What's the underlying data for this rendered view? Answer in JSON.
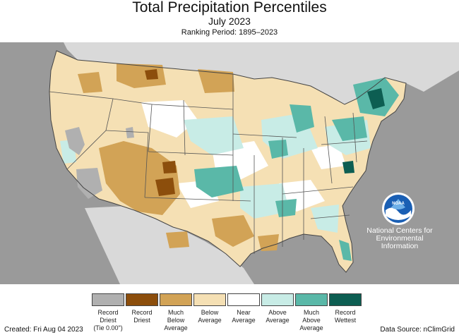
{
  "header": {
    "title": "Total Precipitation Percentiles",
    "subtitle": "July 2023",
    "ranking": "Ranking Period: 1895–2023"
  },
  "colors": {
    "ocean": "#9a9a9a",
    "other_land": "#d9d9d9",
    "record_driest_tie": "#b0b0b0",
    "record_driest": "#8c4e0c",
    "much_below": "#d2a356",
    "below": "#f5e0b4",
    "near": "#ffffff",
    "above": "#c8ece6",
    "much_above": "#5ab8a8",
    "record_wettest": "#0d5e52",
    "state_lines": "#555555"
  },
  "legend": [
    {
      "label": "Record\nDriest\n(Tie 0.00\")",
      "color": "#b0b0b0"
    },
    {
      "label": "Record\nDriest",
      "color": "#8c4e0c"
    },
    {
      "label": "Much\nBelow\nAverage",
      "color": "#d2a356"
    },
    {
      "label": "Below\nAverage",
      "color": "#f5e0b4"
    },
    {
      "label": "Near\nAverage",
      "color": "#ffffff"
    },
    {
      "label": "Above\nAverage",
      "color": "#c8ece6"
    },
    {
      "label": "Much\nAbove\nAverage",
      "color": "#5ab8a8"
    },
    {
      "label": "Record\nWettest",
      "color": "#0d5e52"
    }
  ],
  "logo": {
    "name": "NOAA",
    "org_line1": "National Centers for",
    "org_line2": "Environmental",
    "org_line3": "Information"
  },
  "footer": {
    "created": "Created: Fri Aug 04 2023",
    "source": "Data Source: nClimGrid"
  }
}
